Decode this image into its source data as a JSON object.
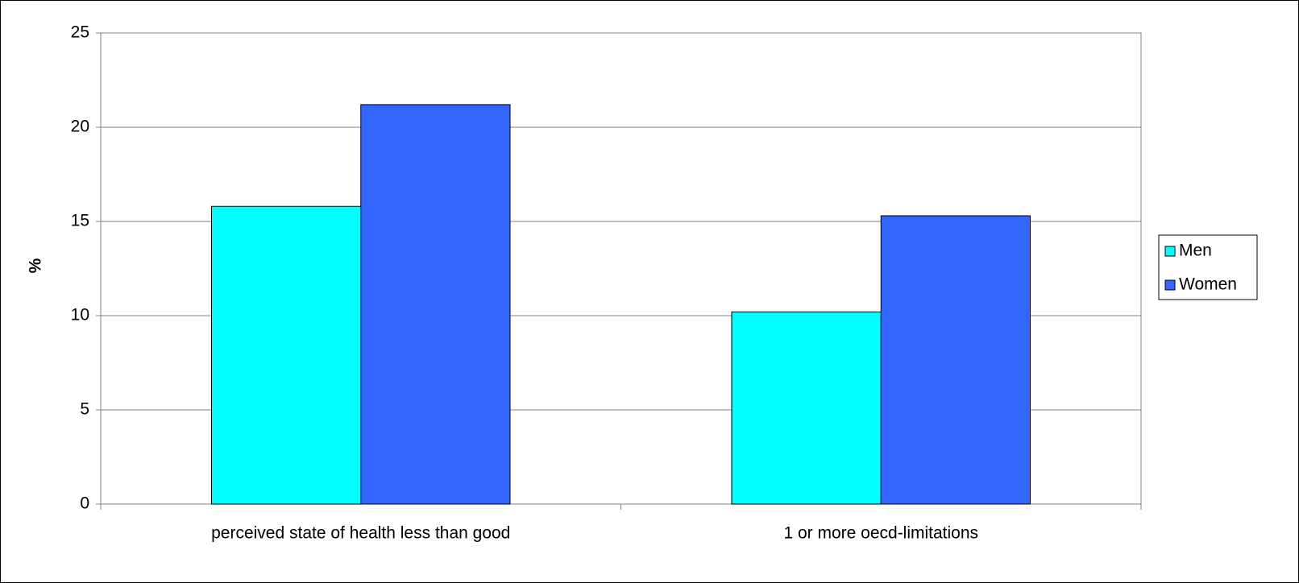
{
  "chart_data": {
    "type": "bar",
    "ylabel": "%",
    "categories": [
      "perceived state of health less than good",
      "1 or more oecd-limitations"
    ],
    "series": [
      {
        "name": "Men",
        "color": "#00ffff",
        "values": [
          15.8,
          10.2
        ]
      },
      {
        "name": "Women",
        "color": "#3366ff",
        "values": [
          21.2,
          15.3
        ]
      }
    ],
    "ylim": [
      0,
      25
    ],
    "yticks": [
      0,
      5,
      10,
      15,
      20,
      25
    ],
    "grid": true,
    "legend": "right"
  }
}
